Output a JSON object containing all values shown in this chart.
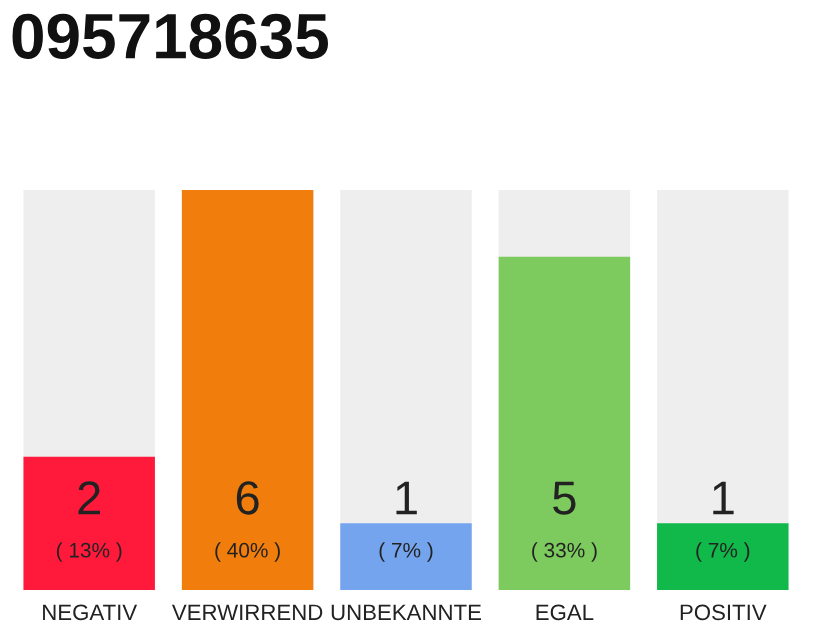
{
  "chart_data": {
    "type": "bar",
    "title": "095718635",
    "categories": [
      "NEGATIV",
      "VERWIRREND",
      "UNBEKANNTE",
      "EGAL",
      "POSITIV"
    ],
    "values": [
      2,
      6,
      1,
      5,
      1
    ],
    "colors": [
      "#ff1a3c",
      "#f07d0c",
      "#74a4ee",
      "#7dcb5e",
      "#11b84a"
    ],
    "value_labels": [
      "2\n( 13% )",
      "6\n( 40% )",
      "1\n( 7% )",
      "5\n( 33% )",
      "1\n( 7% )"
    ],
    "ylim": [
      0,
      6
    ],
    "grid": false,
    "legend": false
  }
}
